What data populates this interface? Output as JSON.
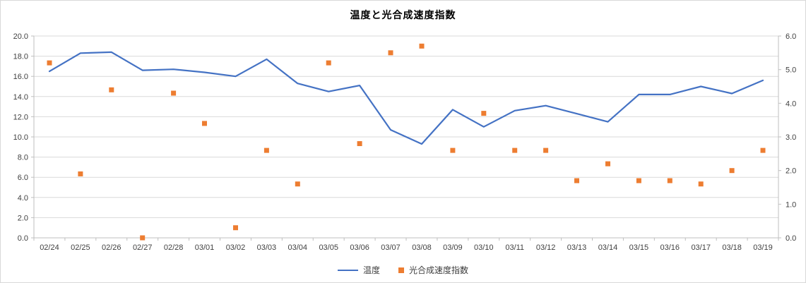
{
  "chart_data": {
    "type": "combo",
    "title": "温度と光合成速度指数",
    "categories": [
      "02/24",
      "02/25",
      "02/26",
      "02/27",
      "02/28",
      "03/01",
      "03/02",
      "03/03",
      "03/04",
      "03/05",
      "03/06",
      "03/07",
      "03/08",
      "03/09",
      "03/10",
      "03/11",
      "03/12",
      "03/13",
      "03/14",
      "03/15",
      "03/16",
      "03/17",
      "03/18",
      "03/19"
    ],
    "series": [
      {
        "name": "温度",
        "type": "line",
        "axis": "left",
        "color": "#4472C4",
        "values": [
          16.5,
          18.3,
          18.4,
          16.6,
          16.7,
          16.4,
          16.0,
          17.7,
          15.3,
          14.5,
          15.1,
          10.7,
          9.3,
          12.7,
          11.0,
          12.6,
          13.1,
          12.3,
          11.5,
          14.2,
          14.2,
          15.0,
          14.3,
          15.6
        ]
      },
      {
        "name": "光合成速度指数",
        "type": "scatter",
        "marker": "square",
        "axis": "right",
        "color": "#ED7D31",
        "values": [
          5.2,
          1.9,
          4.4,
          0.0,
          4.3,
          3.4,
          0.3,
          2.6,
          1.6,
          5.2,
          2.8,
          5.5,
          5.7,
          2.6,
          3.7,
          2.6,
          2.6,
          1.7,
          2.2,
          1.7,
          1.7,
          1.6,
          2.0,
          2.6
        ]
      }
    ],
    "axes": {
      "y_left": {
        "min": 0,
        "max": 20,
        "step": 2,
        "tick_labels": [
          "0.0",
          "2.0",
          "4.0",
          "6.0",
          "8.0",
          "10.0",
          "12.0",
          "14.0",
          "16.0",
          "18.0",
          "20.0"
        ]
      },
      "y_right": {
        "min": 0,
        "max": 6,
        "step": 1,
        "tick_labels": [
          "0.0",
          "1.0",
          "2.0",
          "3.0",
          "4.0",
          "5.0",
          "6.0"
        ]
      }
    },
    "grid": "horizontal",
    "legend_position": "bottom",
    "colors": {
      "gridline": "#D9D9D9",
      "axis_line": "#BFBFBF",
      "tick_text": "#404040",
      "title_text": "#000000"
    }
  }
}
